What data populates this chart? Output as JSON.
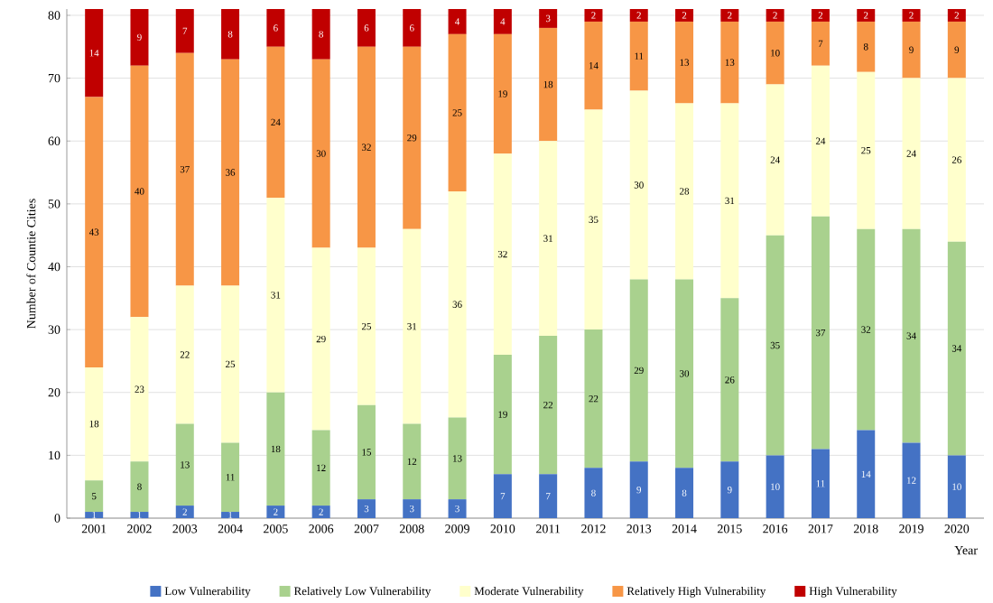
{
  "chart_data": {
    "type": "bar",
    "stacked": true,
    "xlabel": "Year",
    "ylabel": "Number of Countie Cities",
    "categories": [
      "2001",
      "2002",
      "2003",
      "2004",
      "2005",
      "2006",
      "2007",
      "2008",
      "2009",
      "2010",
      "2011",
      "2012",
      "2013",
      "2014",
      "2015",
      "2016",
      "2017",
      "2018",
      "2019",
      "2020"
    ],
    "series": [
      {
        "name": "Low Vulnerability",
        "color": "#4472c4",
        "values": [
          1,
          1,
          2,
          1,
          2,
          2,
          3,
          3,
          3,
          7,
          7,
          8,
          9,
          8,
          9,
          10,
          11,
          14,
          12,
          10
        ]
      },
      {
        "name": "Relatively Low Vulnerability",
        "color": "#a9d18e",
        "values": [
          5,
          8,
          13,
          11,
          18,
          12,
          15,
          12,
          13,
          19,
          22,
          22,
          29,
          30,
          26,
          35,
          37,
          32,
          34,
          34
        ]
      },
      {
        "name": "Moderate Vulnerability",
        "color": "#ffffcc",
        "values": [
          18,
          23,
          22,
          25,
          31,
          29,
          25,
          31,
          36,
          32,
          31,
          35,
          30,
          28,
          31,
          24,
          24,
          25,
          24,
          26
        ]
      },
      {
        "name": "Relatively High Vulnerability",
        "color": "#f79646",
        "values": [
          43,
          40,
          37,
          36,
          24,
          30,
          32,
          29,
          25,
          19,
          18,
          14,
          11,
          13,
          13,
          10,
          7,
          8,
          9,
          9
        ]
      },
      {
        "name": "High Vulnerability",
        "color": "#c00000",
        "values": [
          14,
          9,
          7,
          8,
          6,
          8,
          6,
          6,
          4,
          4,
          3,
          2,
          2,
          2,
          2,
          2,
          2,
          2,
          2,
          2
        ]
      }
    ],
    "ylim": [
      0,
      81
    ],
    "yticks": [
      0,
      10,
      20,
      30,
      40,
      50,
      60,
      70,
      80
    ],
    "grid": "y",
    "legend": "bottom",
    "data_labels": true
  }
}
